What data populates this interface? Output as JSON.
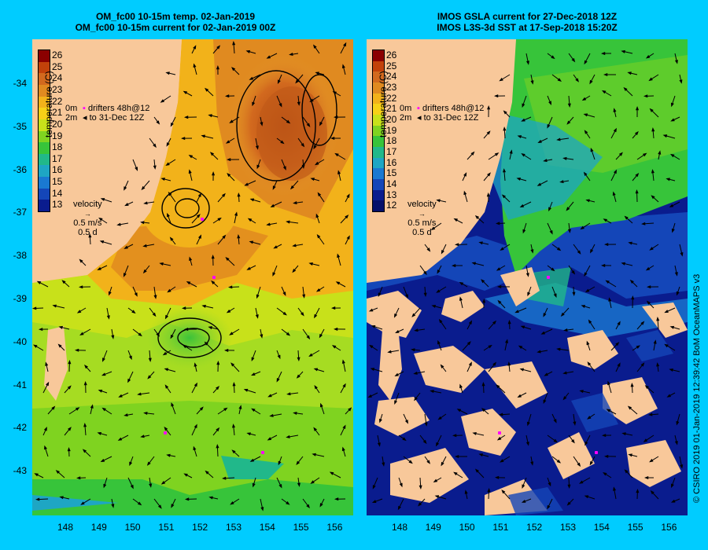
{
  "left_panel": {
    "title_line1": "OM_fc00 10-15m temp. 02-Jan-2019",
    "title_line2": "OM_fc00 10-15m current for 02-Jan-2019 00Z",
    "colorbar_title": "temperature (C)",
    "colorbar_labels": [
      "26",
      "25",
      "24",
      "23",
      "22",
      "21",
      "20",
      "19",
      "18",
      "17",
      "16",
      "15",
      "14",
      "13"
    ],
    "colorbar_colors": [
      "#8b0000",
      "#c2410a",
      "#d2691e",
      "#e08a20",
      "#f2b21a",
      "#f7d117",
      "#c8e11a",
      "#7fd320",
      "#37c43a",
      "#21b88a",
      "#1ea6c4",
      "#1a79d2",
      "#1446b8",
      "#0a1c8e"
    ]
  },
  "right_panel": {
    "title_line1": "IMOS GSLA current for 27-Dec-2018 12Z",
    "title_line2": "IMOS L3S-3d SST at 17-Sep-2018 15:20Z",
    "colorbar_title": "temperature (C)",
    "colorbar_labels": [
      "26",
      "25",
      "24",
      "23",
      "22",
      "21",
      "20",
      "19",
      "18",
      "17",
      "16",
      "15",
      "14",
      "13",
      "12"
    ],
    "colorbar_colors": [
      "#8b0000",
      "#c2410a",
      "#d2691e",
      "#e08a20",
      "#f2b21a",
      "#f7d117",
      "#c8e11a",
      "#7fd320",
      "#37c43a",
      "#21b88a",
      "#1ea6c4",
      "#1a79d2",
      "#1446b8",
      "#0a1c8e",
      "#05106a"
    ]
  },
  "legend": {
    "drifters_line1": "drifters 48h@12",
    "drifters_line2": "to 31-Dec 12Z",
    "velocity_label": "velocity",
    "velocity_scale": "0.5 m/s",
    "velocity_days": "0.5 d",
    "depth_top": "0m",
    "depth_bottom": "2m"
  },
  "axes": {
    "y_ticks": [
      "-34",
      "-35",
      "-36",
      "-37",
      "-38",
      "-39",
      "-40",
      "-41",
      "-42",
      "-43"
    ],
    "x_ticks": [
      "148",
      "149",
      "150",
      "151",
      "152",
      "153",
      "154",
      "155",
      "156"
    ]
  },
  "credit": "© CSIRO 2019   01-Jan-2019 12:39:42 BoM OceanMAPS v3",
  "colors": {
    "background": "#00ccff",
    "land": "#f8c89a",
    "drifter": "#ff00ff",
    "arrow": "#000000"
  }
}
